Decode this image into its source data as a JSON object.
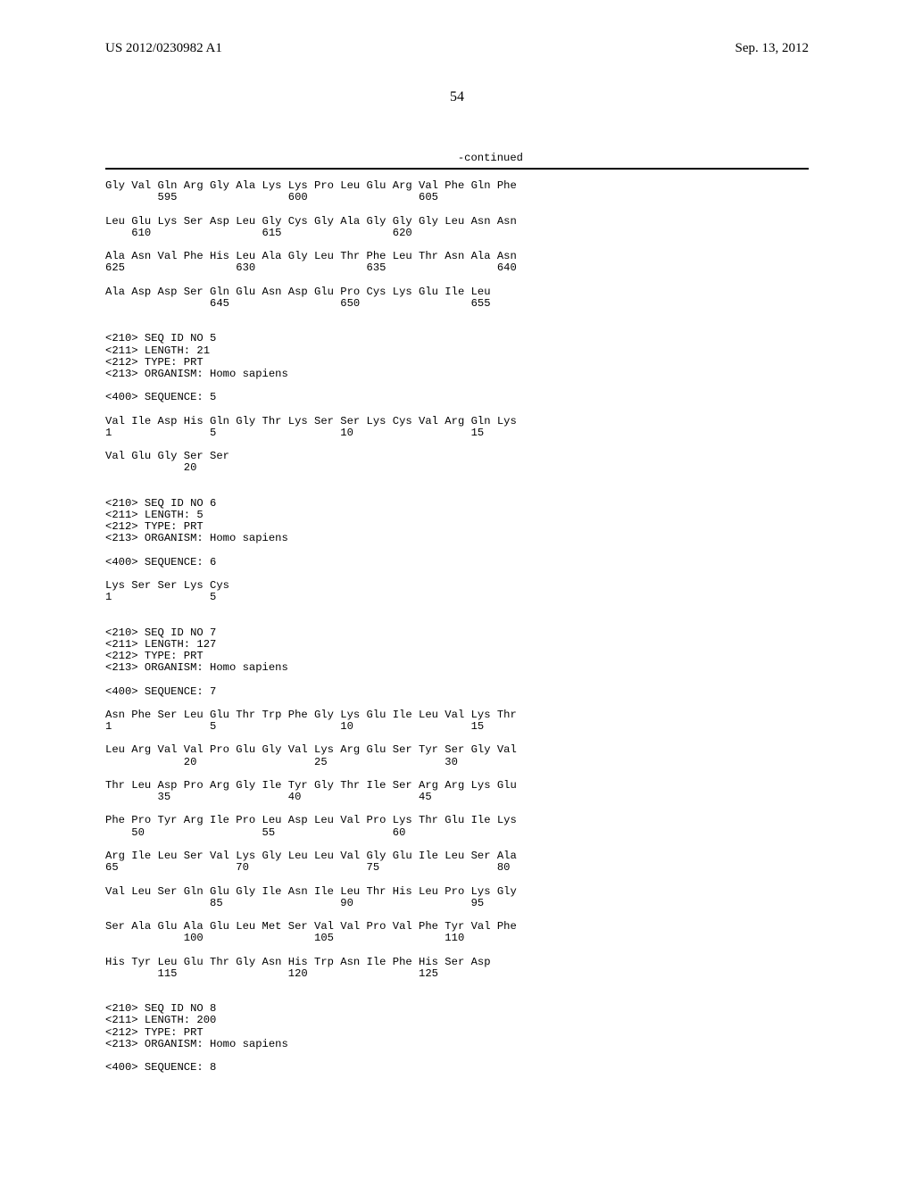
{
  "header": {
    "publication_number": "US 2012/0230982 A1",
    "publication_date": "Sep. 13, 2012",
    "page_number": "54"
  },
  "continued_label": "-continued",
  "sequence_text": "Gly Val Gln Arg Gly Ala Lys Lys Pro Leu Glu Arg Val Phe Gln Phe\n        595                 600                 605\n\nLeu Glu Lys Ser Asp Leu Gly Cys Gly Ala Gly Gly Gly Leu Asn Asn\n    610                 615                 620\n\nAla Asn Val Phe His Leu Ala Gly Leu Thr Phe Leu Thr Asn Ala Asn\n625                 630                 635                 640\n\nAla Asp Asp Ser Gln Glu Asn Asp Glu Pro Cys Lys Glu Ile Leu\n                645                 650                 655\n\n\n<210> SEQ ID NO 5\n<211> LENGTH: 21\n<212> TYPE: PRT\n<213> ORGANISM: Homo sapiens\n\n<400> SEQUENCE: 5\n\nVal Ile Asp His Gln Gly Thr Lys Ser Ser Lys Cys Val Arg Gln Lys\n1               5                   10                  15\n\nVal Glu Gly Ser Ser\n            20\n\n\n<210> SEQ ID NO 6\n<211> LENGTH: 5\n<212> TYPE: PRT\n<213> ORGANISM: Homo sapiens\n\n<400> SEQUENCE: 6\n\nLys Ser Ser Lys Cys\n1               5\n\n\n<210> SEQ ID NO 7\n<211> LENGTH: 127\n<212> TYPE: PRT\n<213> ORGANISM: Homo sapiens\n\n<400> SEQUENCE: 7\n\nAsn Phe Ser Leu Glu Thr Trp Phe Gly Lys Glu Ile Leu Val Lys Thr\n1               5                   10                  15\n\nLeu Arg Val Val Pro Glu Gly Val Lys Arg Glu Ser Tyr Ser Gly Val\n            20                  25                  30\n\nThr Leu Asp Pro Arg Gly Ile Tyr Gly Thr Ile Ser Arg Arg Lys Glu\n        35                  40                  45\n\nPhe Pro Tyr Arg Ile Pro Leu Asp Leu Val Pro Lys Thr Glu Ile Lys\n    50                  55                  60\n\nArg Ile Leu Ser Val Lys Gly Leu Leu Val Gly Glu Ile Leu Ser Ala\n65                  70                  75                  80\n\nVal Leu Ser Gln Glu Gly Ile Asn Ile Leu Thr His Leu Pro Lys Gly\n                85                  90                  95\n\nSer Ala Glu Ala Glu Leu Met Ser Val Val Pro Val Phe Tyr Val Phe\n            100                 105                 110\n\nHis Tyr Leu Glu Thr Gly Asn His Trp Asn Ile Phe His Ser Asp\n        115                 120                 125\n\n\n<210> SEQ ID NO 8\n<211> LENGTH: 200\n<212> TYPE: PRT\n<213> ORGANISM: Homo sapiens\n\n<400> SEQUENCE: 8"
}
